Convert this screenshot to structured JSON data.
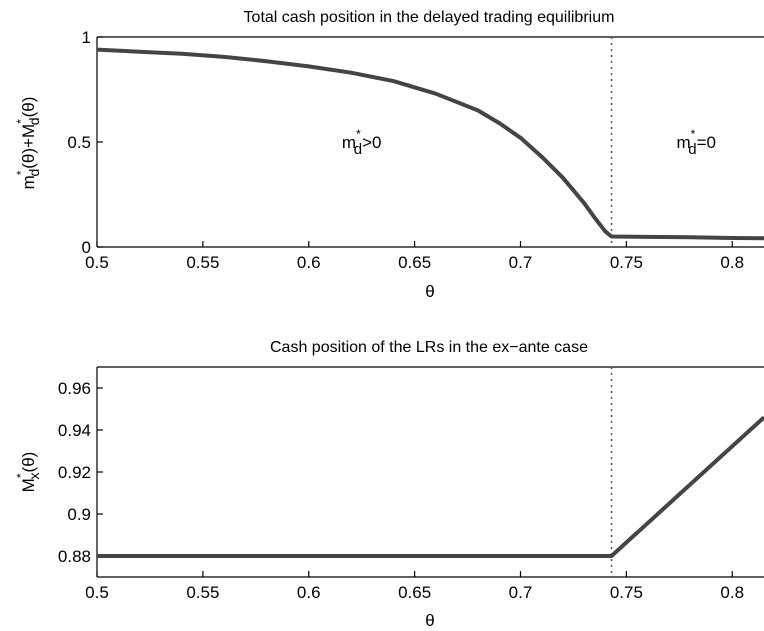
{
  "chart_data": [
    {
      "type": "line",
      "title": "Total cash position in the delayed trading equilibrium",
      "xlabel": "θ",
      "ylabel": {
        "main": "m",
        "sup1": "*",
        "sub1": "d",
        "mid": "(θ)+M",
        "sup2": "*",
        "sub2": "d",
        "end": "(θ)"
      },
      "xlim": [
        0.5,
        0.815
      ],
      "ylim": [
        0,
        1
      ],
      "xticks": [
        "0.5",
        "0.55",
        "0.6",
        "0.65",
        "0.7",
        "0.75",
        "0.8"
      ],
      "yticks": [
        "0",
        "0.5",
        "1"
      ],
      "vline_x": 0.743,
      "series": [
        {
          "x": [
            0.5,
            0.52,
            0.54,
            0.56,
            0.58,
            0.6,
            0.62,
            0.64,
            0.66,
            0.68,
            0.69,
            0.7,
            0.71,
            0.72,
            0.73,
            0.735,
            0.74,
            0.743,
            0.743,
            0.76,
            0.78,
            0.8,
            0.815
          ],
          "y": [
            0.94,
            0.93,
            0.92,
            0.905,
            0.885,
            0.86,
            0.83,
            0.79,
            0.73,
            0.65,
            0.59,
            0.52,
            0.43,
            0.33,
            0.21,
            0.14,
            0.075,
            0.05,
            0.05,
            0.048,
            0.046,
            0.043,
            0.042
          ]
        }
      ],
      "annotations": [
        {
          "base": "m",
          "sup": "*",
          "sub": "d",
          "rest": ">0",
          "x": 0.625,
          "y": 0.5
        },
        {
          "base": "m",
          "sup": "*",
          "sub": "d",
          "rest": "=0",
          "x": 0.783,
          "y": 0.5
        }
      ]
    },
    {
      "type": "line",
      "title": "Cash position of the LRs in the ex−ante case",
      "xlabel": "θ",
      "ylabel": {
        "main": "M",
        "sup1": "*",
        "sub1": "x",
        "mid": "(θ)"
      },
      "xlim": [
        0.5,
        0.815
      ],
      "ylim": [
        0.87,
        0.97
      ],
      "xticks": [
        "0.5",
        "0.55",
        "0.6",
        "0.65",
        "0.7",
        "0.75",
        "0.8"
      ],
      "yticks": [
        "0.88",
        "0.9",
        "0.92",
        "0.94",
        "0.96"
      ],
      "vline_x": 0.743,
      "series": [
        {
          "x": [
            0.5,
            0.743,
            0.815
          ],
          "y": [
            0.88,
            0.88,
            0.946
          ]
        }
      ]
    }
  ]
}
